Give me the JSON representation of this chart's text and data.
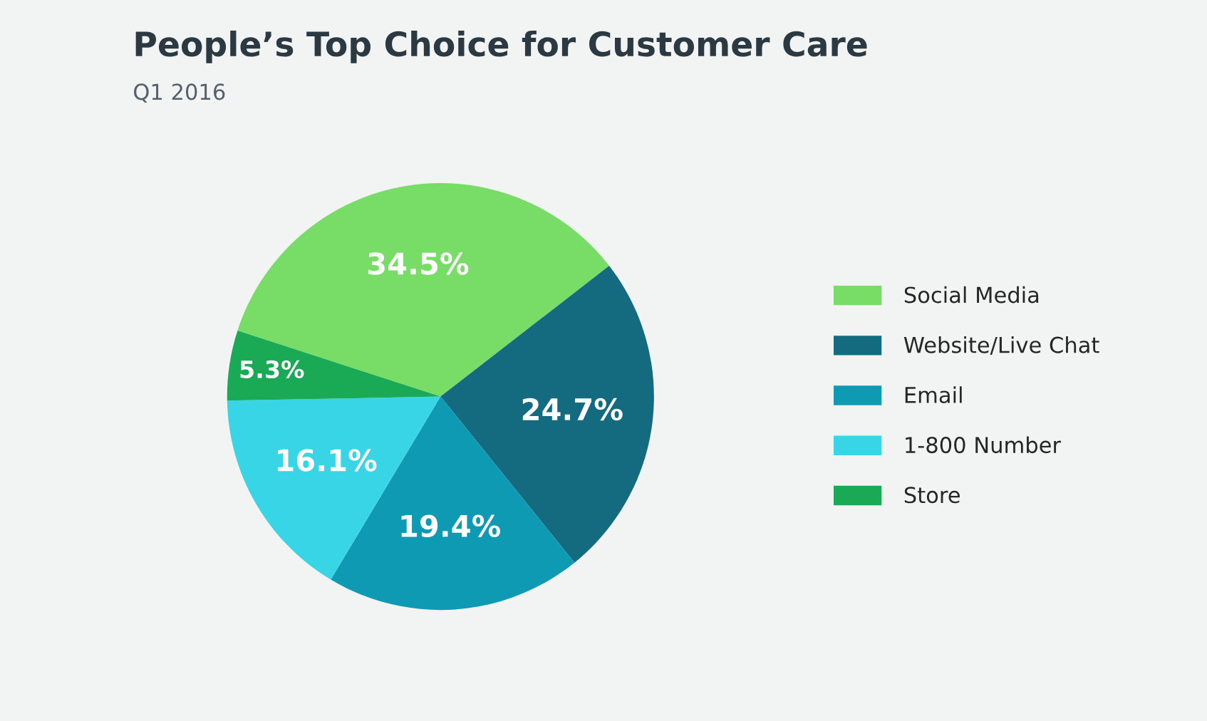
{
  "chart_data": {
    "type": "pie",
    "title": "People’s Top Choice for Customer Care",
    "subtitle": "Q1 2016",
    "categories": [
      "Social Media",
      "Website/Live Chat",
      "Email",
      "1-800 Number",
      "Store"
    ],
    "values": [
      34.5,
      24.7,
      19.4,
      16.1,
      5.3
    ],
    "colors": [
      "#77dd66",
      "#146b80",
      "#0f9ab3",
      "#38d5e6",
      "#1aaa55"
    ],
    "value_labels": [
      "34.5%",
      "24.7%",
      "19.4%",
      "16.1%",
      "5.3%"
    ],
    "legend": "right"
  }
}
